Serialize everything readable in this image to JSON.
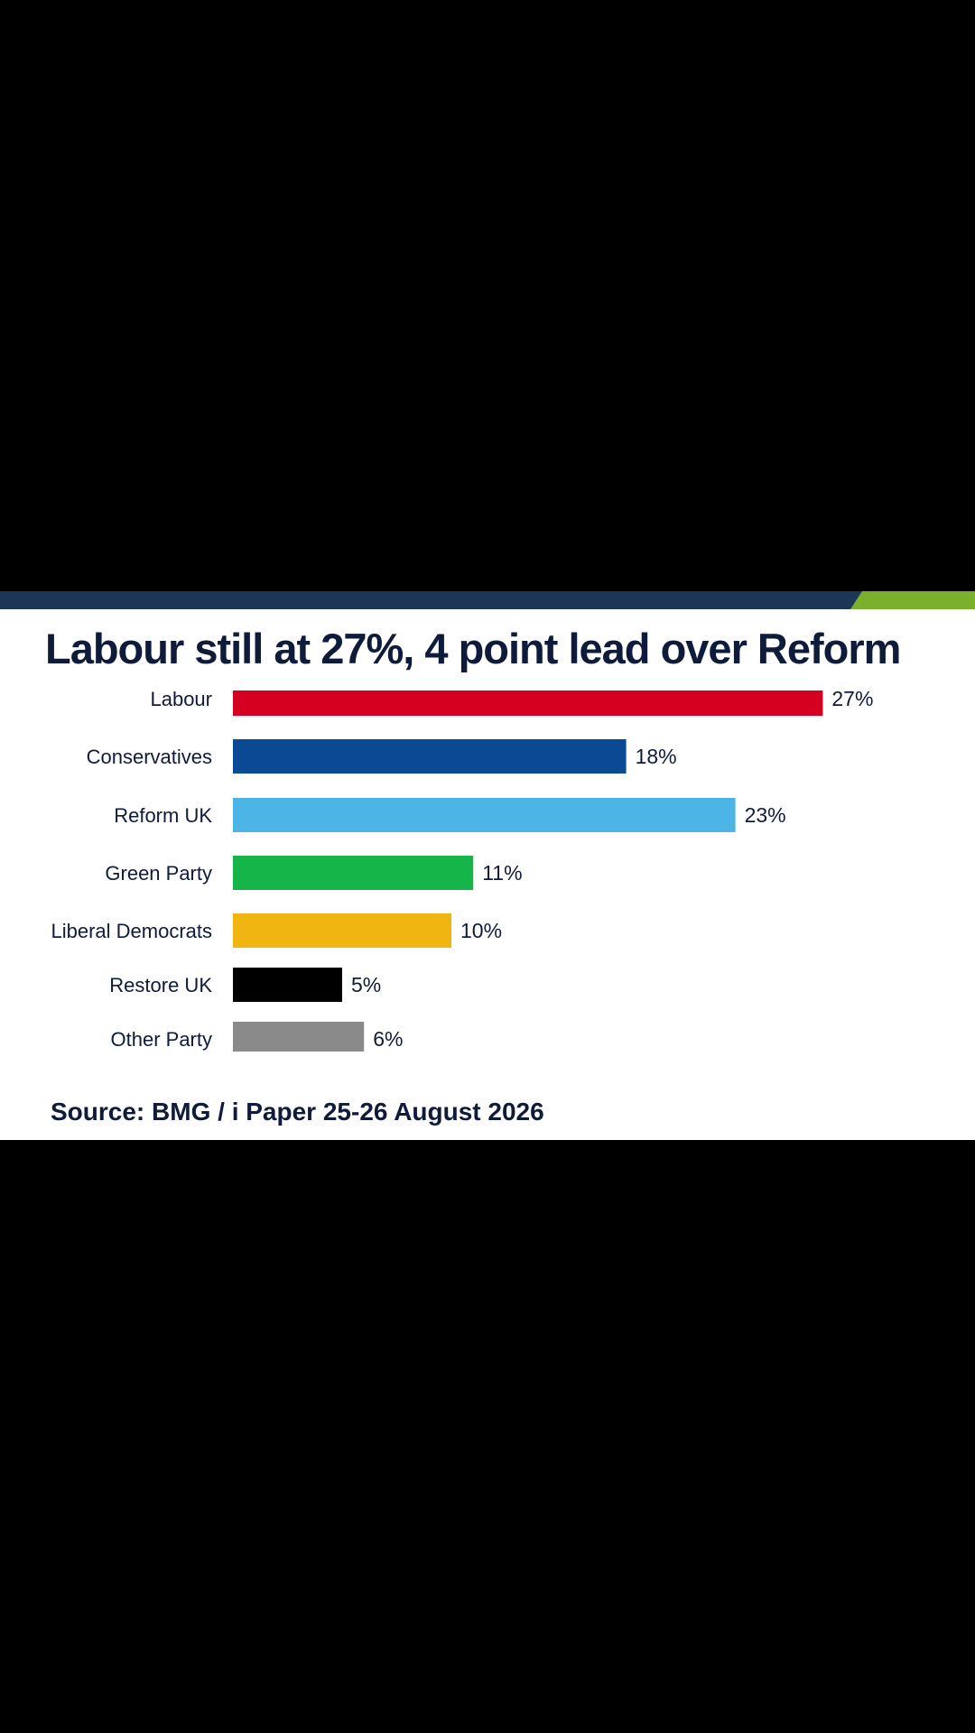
{
  "title": "Labour still at 27%, 4 point lead over Reform",
  "source": "Source: BMG / i Paper 25-26 August 2026",
  "colors": {
    "background": "#000000",
    "card": "#ffffff",
    "text": "#0f1b3a",
    "topbar_navy": "#1d3557",
    "topbar_green": "#7ab02c"
  },
  "chart_data": {
    "type": "bar",
    "orientation": "horizontal",
    "title": "Labour still at 27%, 4 point lead over Reform",
    "xlim": [
      0,
      30
    ],
    "grid": false,
    "categories": [
      "Labour",
      "Conservatives",
      "Reform UK",
      "Green Party",
      "Liberal Democrats",
      "Restore UK",
      "Other Party"
    ],
    "values": [
      27,
      18,
      23,
      11,
      10,
      5,
      6
    ],
    "value_labels": [
      "27%",
      "18%",
      "23%",
      "11%",
      "10%",
      "5%",
      "6%"
    ],
    "colors": [
      "#d5001f",
      "#0a4a94",
      "#4cb5e5",
      "#16b54a",
      "#f0b511",
      "#000000",
      "#8a8a8a"
    ]
  }
}
